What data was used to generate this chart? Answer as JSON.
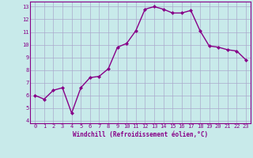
{
  "x": [
    0,
    1,
    2,
    3,
    4,
    5,
    6,
    7,
    8,
    9,
    10,
    11,
    12,
    13,
    14,
    15,
    16,
    17,
    18,
    19,
    20,
    21,
    22,
    23
  ],
  "y": [
    6.0,
    5.7,
    6.4,
    6.6,
    4.6,
    6.6,
    7.4,
    7.5,
    8.1,
    9.8,
    10.1,
    11.1,
    12.8,
    13.0,
    12.8,
    12.5,
    12.5,
    12.7,
    11.1,
    9.9,
    9.8,
    9.6,
    9.5,
    8.8
  ],
  "line_color": "#880088",
  "marker": "D",
  "marker_size": 2.0,
  "bg_color": "#c8eaea",
  "grid_color": "#aaaacc",
  "xlabel": "Windchill (Refroidissement éolien,°C)",
  "xlabel_color": "#880088",
  "tick_color": "#880088",
  "spine_color": "#880088",
  "xlim": [
    -0.5,
    23.5
  ],
  "ylim": [
    3.8,
    13.4
  ],
  "yticks": [
    4,
    5,
    6,
    7,
    8,
    9,
    10,
    11,
    12,
    13
  ],
  "xticks": [
    0,
    1,
    2,
    3,
    4,
    5,
    6,
    7,
    8,
    9,
    10,
    11,
    12,
    13,
    14,
    15,
    16,
    17,
    18,
    19,
    20,
    21,
    22,
    23
  ],
  "line_width": 1.0,
  "fig_bg_color": "#c8eaea",
  "tick_fontsize": 5.0,
  "xlabel_fontsize": 5.5,
  "xlabel_fontweight": "bold"
}
